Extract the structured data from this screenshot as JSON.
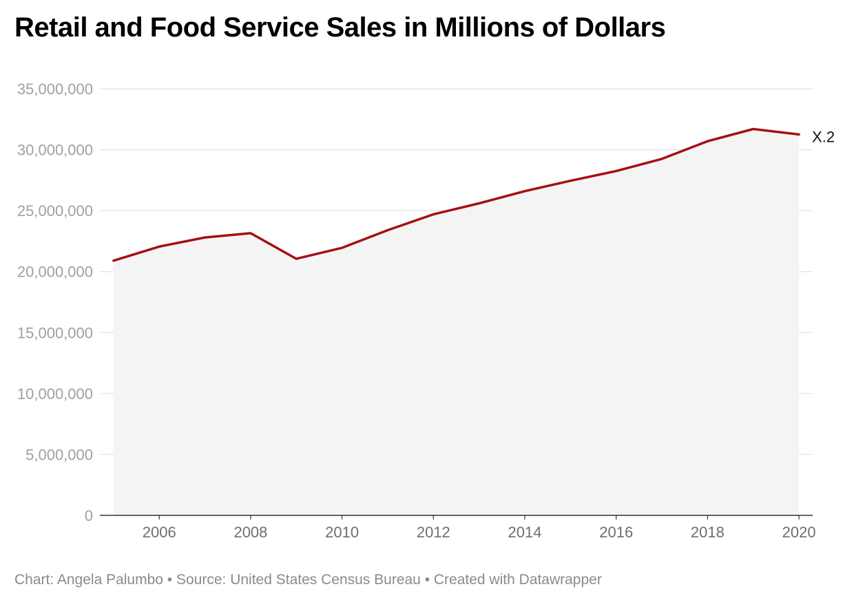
{
  "chart_data": {
    "type": "area",
    "title": "Retail and Food Service Sales in Millions of Dollars",
    "xlabel": "",
    "ylabel": "",
    "x": [
      2005,
      2006,
      2007,
      2008,
      2009,
      2010,
      2011,
      2012,
      2013,
      2014,
      2015,
      2016,
      2017,
      2018,
      2019,
      2020
    ],
    "x_ticks": [
      "2006",
      "2008",
      "2010",
      "2012",
      "2014",
      "2016",
      "2018",
      "2020"
    ],
    "y_ticks": [
      "0",
      "5,000,000",
      "10,000,000",
      "15,000,000",
      "20,000,000",
      "25,000,000",
      "30,000,000",
      "35,000,000"
    ],
    "ylim": [
      0,
      35000000
    ],
    "xlim": [
      2004.7,
      2020.3
    ],
    "grid": true,
    "series": [
      {
        "name": "X.2",
        "values": [
          20900000,
          22050000,
          22800000,
          23150000,
          21050000,
          21950000,
          23400000,
          24700000,
          25600000,
          26600000,
          27450000,
          28250000,
          29250000,
          30700000,
          31700000,
          31250000
        ]
      }
    ],
    "colors": {
      "line": "#a50f15",
      "area": "#f4f4f4",
      "grid": "#e3e3e3",
      "axis": "#333333"
    }
  },
  "footer": {
    "text": "Chart: Angela Palumbo • Source: United States Census Bureau • Created with Datawrapper"
  }
}
